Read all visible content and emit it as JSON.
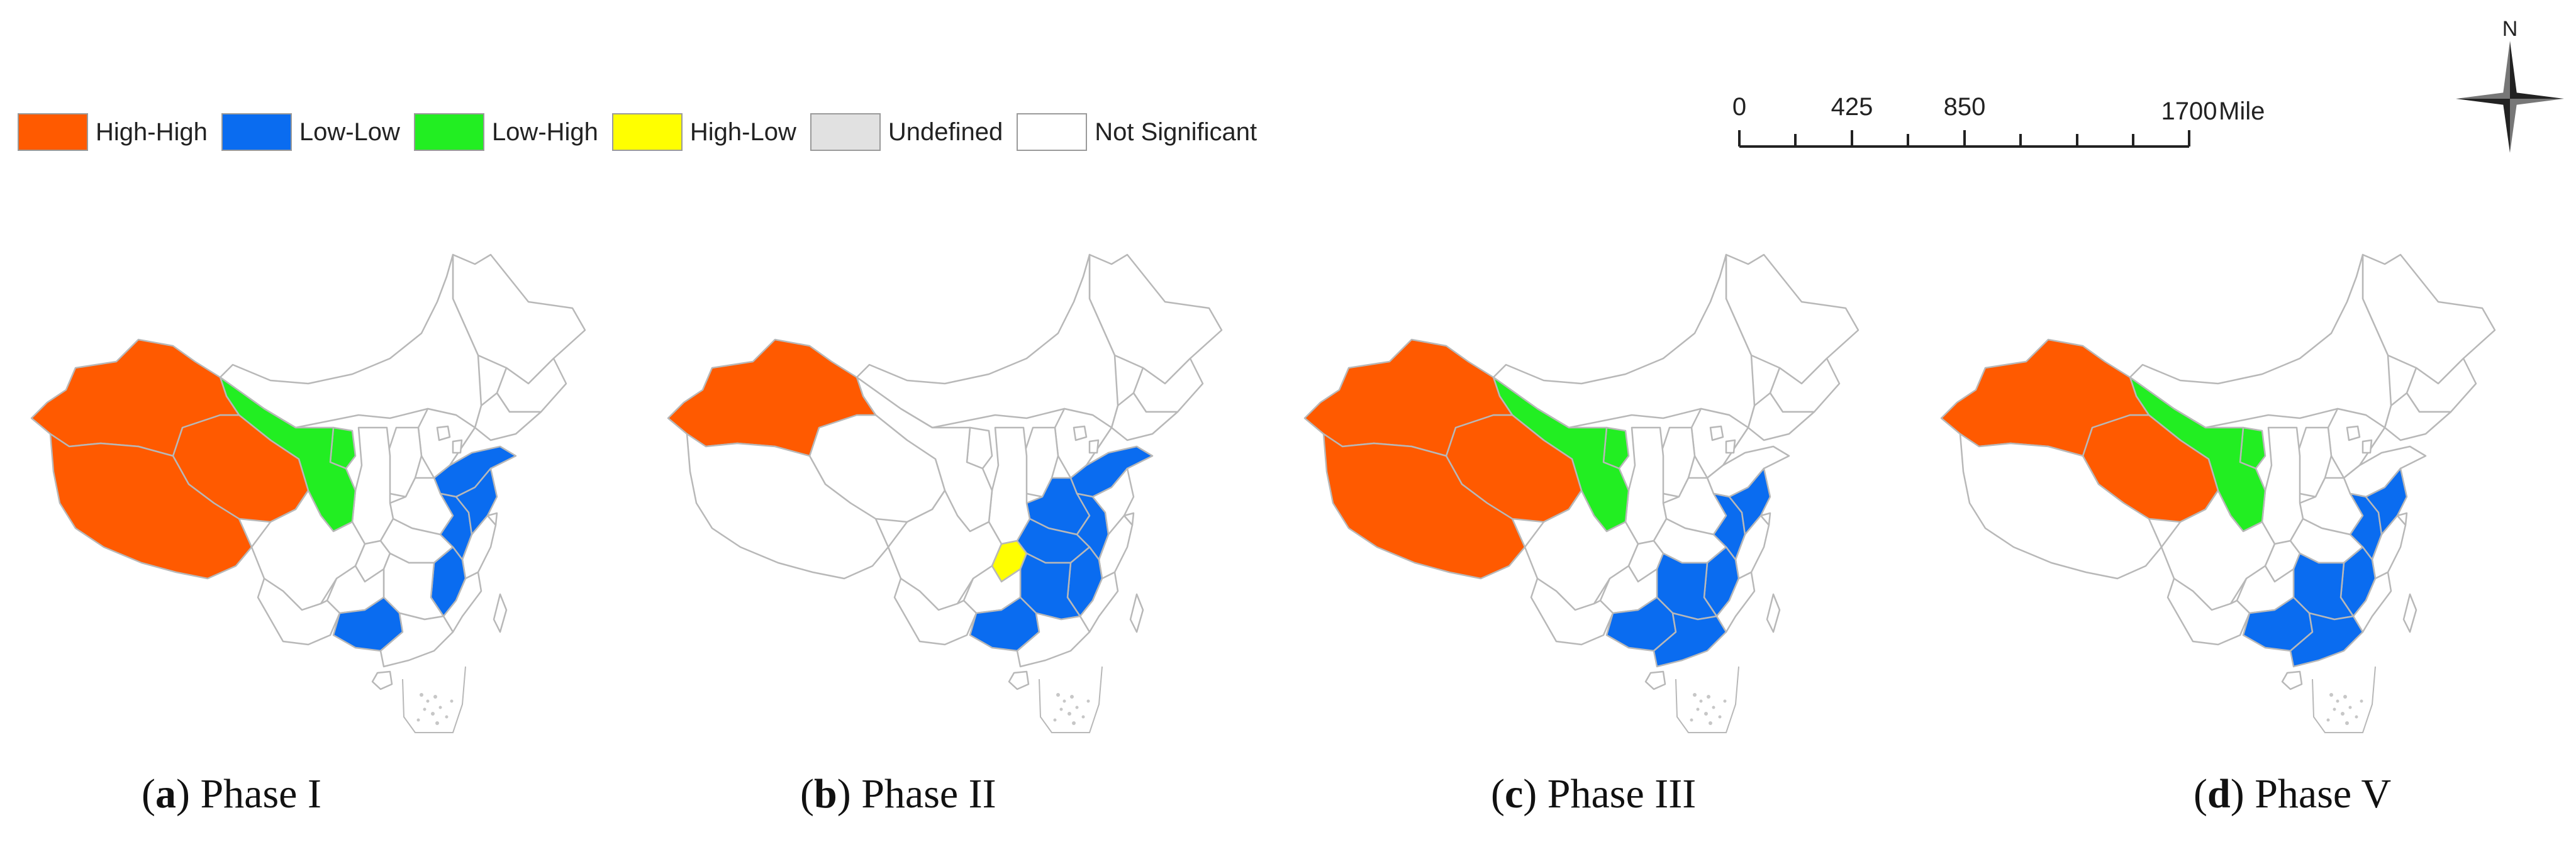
{
  "legend": {
    "items": [
      {
        "label": "High-High",
        "color": "#ff5a00"
      },
      {
        "label": "Low-Low",
        "color": "#0a6cf0"
      },
      {
        "label": "Low-High",
        "color": "#22ee22"
      },
      {
        "label": "High-Low",
        "color": "#ffff00"
      },
      {
        "label": "Undefined",
        "color": "#e1e1e1"
      },
      {
        "label": "Not Significant",
        "color": "#ffffff"
      }
    ]
  },
  "scalebar": {
    "ticks": [
      "0",
      "425",
      "850",
      "1700"
    ],
    "unit": "Miles"
  },
  "north": {
    "label": "N"
  },
  "panels": [
    {
      "letter": "a",
      "title": "Phase I",
      "clusters": {
        "high_high": [
          "Xinjiang",
          "Tibet",
          "Qinghai"
        ],
        "low_high": [
          "Gansu",
          "Ningxia"
        ],
        "low_low": [
          "Shandong",
          "Jiangsu",
          "Anhui",
          "Jiangxi",
          "Guangxi"
        ],
        "high_low": []
      }
    },
    {
      "letter": "b",
      "title": "Phase II",
      "clusters": {
        "high_high": [
          "Xinjiang"
        ],
        "low_high": [],
        "low_low": [
          "Shandong",
          "Henan",
          "Anhui",
          "Hubei",
          "Hunan",
          "Jiangxi",
          "Guangxi"
        ],
        "high_low": [
          "Chongqing"
        ]
      }
    },
    {
      "letter": "c",
      "title": "Phase III",
      "clusters": {
        "high_high": [
          "Xinjiang",
          "Tibet",
          "Qinghai"
        ],
        "low_high": [
          "Gansu",
          "Ningxia"
        ],
        "low_low": [
          "Jiangsu",
          "Anhui",
          "Hunan",
          "Jiangxi",
          "Guangxi",
          "Guangdong"
        ],
        "high_low": []
      }
    },
    {
      "letter": "d",
      "title": "Phase V",
      "clusters": {
        "high_high": [
          "Xinjiang",
          "Qinghai"
        ],
        "low_high": [
          "Gansu",
          "Ningxia"
        ],
        "low_low": [
          "Jiangsu",
          "Anhui",
          "Hunan",
          "Jiangxi",
          "Guangxi",
          "Guangdong"
        ],
        "high_low": []
      }
    }
  ]
}
